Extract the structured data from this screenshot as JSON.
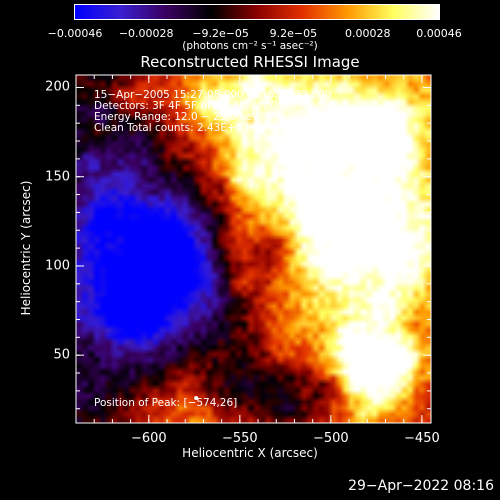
{
  "colorbar": {
    "tick_labels": [
      "−0.00046",
      "−0.00028",
      "−9.2e−05",
      "9.2e−05",
      "0.00028",
      "0.00046"
    ],
    "tick_values": [
      -0.00046,
      -0.00028,
      -9.2e-05,
      9.2e-05,
      0.00028,
      0.00046
    ],
    "unit": "(photons cm⁻² s⁻¹ asec⁻²)",
    "stops": [
      "#0000ff",
      "#3a1fd0",
      "#3a0060",
      "#000000",
      "#8a0000",
      "#e23000",
      "#ff9a00",
      "#ffff60",
      "#ffffff"
    ]
  },
  "chart_data": {
    "type": "heatmap",
    "title": "Reconstructed RHESSI Image",
    "xlabel": "Heliocentric X (arcsec)",
    "ylabel": "Heliocentric Y (arcsec)",
    "xlim": [
      -640,
      -445
    ],
    "ylim": [
      12,
      207
    ],
    "xticks": [
      -600,
      -550,
      -500,
      -450
    ],
    "xtick_labels": [
      "−600",
      "−550",
      "−500",
      "−450"
    ],
    "yticks": [
      50,
      100,
      150,
      200
    ],
    "ytick_labels": [
      "50",
      "100",
      "150",
      "200"
    ],
    "grid": false,
    "annotations": [
      "15−Apr−2005 15:27:08.000 to 15:29:32.000",
      "Detectors: 3F 4F 5F 6F 7F 8F, Att 0",
      "Energy Range: 12.0 − 25.0 keV",
      "Clean     Total counts: 2.43E+03"
    ],
    "peak_label": "Position of Peak: [−574,26]",
    "peak": [
      -574,
      26
    ]
  },
  "footer": "29−Apr−2022 08:16"
}
